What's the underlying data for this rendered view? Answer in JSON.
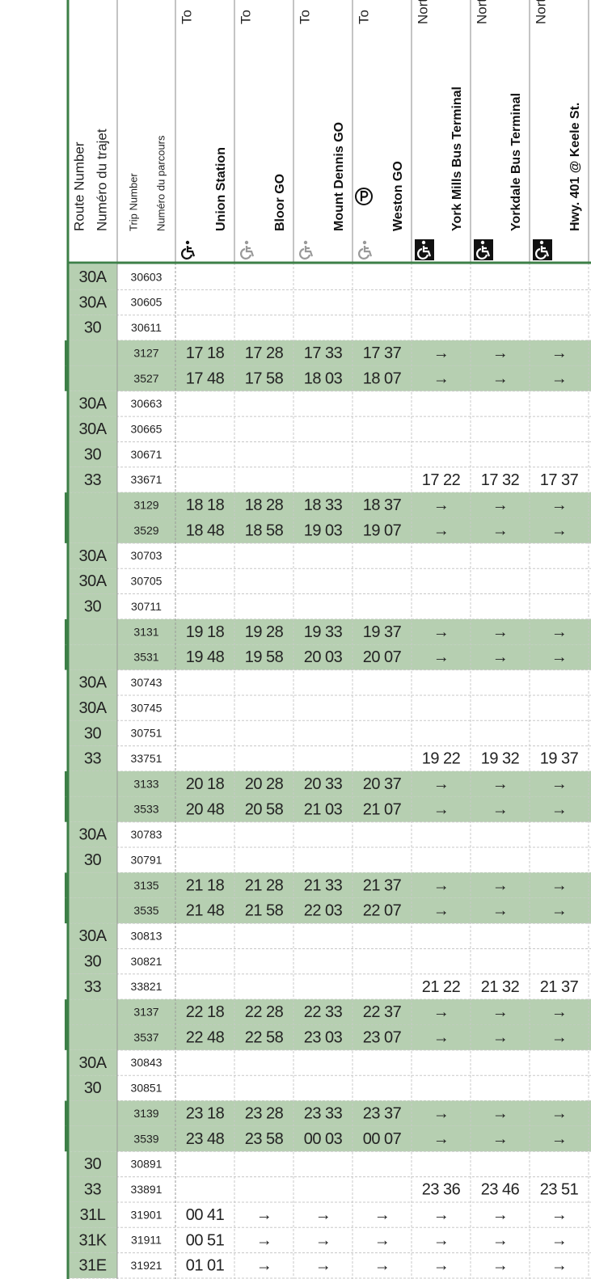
{
  "header": {
    "route_label": [
      "Route Number",
      "Numéro du trajet"
    ],
    "trip_label": [
      "Trip Number",
      "Numéro du parcours"
    ],
    "stops": [
      {
        "direction": "To",
        "name": "Union Station"
      },
      {
        "direction": "To",
        "name": "Bloor GO"
      },
      {
        "direction": "To",
        "name": "Mount Dennis GO"
      },
      {
        "direction": "To",
        "name": "Weston GO"
      },
      {
        "direction": "North",
        "name": "York Mills Bus Terminal"
      },
      {
        "direction": "North",
        "name": "Yorkdale Bus Terminal"
      },
      {
        "direction": "North",
        "name": "Hwy. 401 @ Keele St."
      }
    ]
  },
  "table": {
    "rows": [
      {
        "route": "30A",
        "trip": "30603",
        "shaded": false,
        "times": [
          null,
          null,
          null,
          null,
          null,
          null,
          null
        ]
      },
      {
        "route": "30A",
        "trip": "30605",
        "shaded": false,
        "times": [
          null,
          null,
          null,
          null,
          null,
          null,
          null
        ]
      },
      {
        "route": "30",
        "trip": "30611",
        "shaded": false,
        "times": [
          null,
          null,
          null,
          null,
          null,
          null,
          null
        ]
      },
      {
        "route": null,
        "trip": "3127",
        "shaded": true,
        "times": [
          "17 18",
          "17 28",
          "17 33",
          "17 37",
          "→",
          "→",
          "→"
        ]
      },
      {
        "route": null,
        "trip": "3527",
        "shaded": true,
        "times": [
          "17 48",
          "17 58",
          "18 03",
          "18 07",
          "→",
          "→",
          "→"
        ]
      },
      {
        "route": "30A",
        "trip": "30663",
        "shaded": false,
        "times": [
          null,
          null,
          null,
          null,
          null,
          null,
          null
        ]
      },
      {
        "route": "30A",
        "trip": "30665",
        "shaded": false,
        "times": [
          null,
          null,
          null,
          null,
          null,
          null,
          null
        ]
      },
      {
        "route": "30",
        "trip": "30671",
        "shaded": false,
        "times": [
          null,
          null,
          null,
          null,
          null,
          null,
          null
        ]
      },
      {
        "route": "33",
        "trip": "33671",
        "shaded": false,
        "times": [
          null,
          null,
          null,
          null,
          "17 22",
          "17 32",
          "17 37"
        ]
      },
      {
        "route": null,
        "trip": "3129",
        "shaded": true,
        "times": [
          "18 18",
          "18 28",
          "18 33",
          "18 37",
          "→",
          "→",
          "→"
        ]
      },
      {
        "route": null,
        "trip": "3529",
        "shaded": true,
        "times": [
          "18 48",
          "18 58",
          "19 03",
          "19 07",
          "→",
          "→",
          "→"
        ]
      },
      {
        "route": "30A",
        "trip": "30703",
        "shaded": false,
        "times": [
          null,
          null,
          null,
          null,
          null,
          null,
          null
        ]
      },
      {
        "route": "30A",
        "trip": "30705",
        "shaded": false,
        "times": [
          null,
          null,
          null,
          null,
          null,
          null,
          null
        ]
      },
      {
        "route": "30",
        "trip": "30711",
        "shaded": false,
        "times": [
          null,
          null,
          null,
          null,
          null,
          null,
          null
        ]
      },
      {
        "route": null,
        "trip": "3131",
        "shaded": true,
        "times": [
          "19 18",
          "19 28",
          "19 33",
          "19 37",
          "→",
          "→",
          "→"
        ]
      },
      {
        "route": null,
        "trip": "3531",
        "shaded": true,
        "times": [
          "19 48",
          "19 58",
          "20 03",
          "20 07",
          "→",
          "→",
          "→"
        ]
      },
      {
        "route": "30A",
        "trip": "30743",
        "shaded": false,
        "times": [
          null,
          null,
          null,
          null,
          null,
          null,
          null
        ]
      },
      {
        "route": "30A",
        "trip": "30745",
        "shaded": false,
        "times": [
          null,
          null,
          null,
          null,
          null,
          null,
          null
        ]
      },
      {
        "route": "30",
        "trip": "30751",
        "shaded": false,
        "times": [
          null,
          null,
          null,
          null,
          null,
          null,
          null
        ]
      },
      {
        "route": "33",
        "trip": "33751",
        "shaded": false,
        "times": [
          null,
          null,
          null,
          null,
          "19 22",
          "19 32",
          "19 37"
        ]
      },
      {
        "route": null,
        "trip": "3133",
        "shaded": true,
        "times": [
          "20 18",
          "20 28",
          "20 33",
          "20 37",
          "→",
          "→",
          "→"
        ]
      },
      {
        "route": null,
        "trip": "3533",
        "shaded": true,
        "times": [
          "20 48",
          "20 58",
          "21 03",
          "21 07",
          "→",
          "→",
          "→"
        ]
      },
      {
        "route": "30A",
        "trip": "30783",
        "shaded": false,
        "times": [
          null,
          null,
          null,
          null,
          null,
          null,
          null
        ]
      },
      {
        "route": "30",
        "trip": "30791",
        "shaded": false,
        "times": [
          null,
          null,
          null,
          null,
          null,
          null,
          null
        ]
      },
      {
        "route": null,
        "trip": "3135",
        "shaded": true,
        "times": [
          "21 18",
          "21 28",
          "21 33",
          "21 37",
          "→",
          "→",
          "→"
        ]
      },
      {
        "route": null,
        "trip": "3535",
        "shaded": true,
        "times": [
          "21 48",
          "21 58",
          "22 03",
          "22 07",
          "→",
          "→",
          "→"
        ]
      },
      {
        "route": "30A",
        "trip": "30813",
        "shaded": false,
        "times": [
          null,
          null,
          null,
          null,
          null,
          null,
          null
        ]
      },
      {
        "route": "30",
        "trip": "30821",
        "shaded": false,
        "times": [
          null,
          null,
          null,
          null,
          null,
          null,
          null
        ]
      },
      {
        "route": "33",
        "trip": "33821",
        "shaded": false,
        "times": [
          null,
          null,
          null,
          null,
          "21 22",
          "21 32",
          "21 37"
        ]
      },
      {
        "route": null,
        "trip": "3137",
        "shaded": true,
        "times": [
          "22 18",
          "22 28",
          "22 33",
          "22 37",
          "→",
          "→",
          "→"
        ]
      },
      {
        "route": null,
        "trip": "3537",
        "shaded": true,
        "times": [
          "22 48",
          "22 58",
          "23 03",
          "23 07",
          "→",
          "→",
          "→"
        ]
      },
      {
        "route": "30A",
        "trip": "30843",
        "shaded": false,
        "times": [
          null,
          null,
          null,
          null,
          null,
          null,
          null
        ]
      },
      {
        "route": "30",
        "trip": "30851",
        "shaded": false,
        "times": [
          null,
          null,
          null,
          null,
          null,
          null,
          null
        ]
      },
      {
        "route": null,
        "trip": "3139",
        "shaded": true,
        "times": [
          "23 18",
          "23 28",
          "23 33",
          "23 37",
          "→",
          "→",
          "→"
        ]
      },
      {
        "route": null,
        "trip": "3539",
        "shaded": true,
        "times": [
          "23 48",
          "23 58",
          "00 03",
          "00 07",
          "→",
          "→",
          "→"
        ]
      },
      {
        "route": "30",
        "trip": "30891",
        "shaded": false,
        "times": [
          null,
          null,
          null,
          null,
          null,
          null,
          null
        ]
      },
      {
        "route": "33",
        "trip": "33891",
        "shaded": false,
        "times": [
          null,
          null,
          null,
          null,
          "23 36",
          "23 46",
          "23 51"
        ]
      },
      {
        "route": "31L",
        "trip": "31901",
        "shaded": false,
        "times": [
          "00 41",
          "→",
          "→",
          "→",
          "→",
          "→",
          "→"
        ]
      },
      {
        "route": "31K",
        "trip": "31911",
        "shaded": false,
        "times": [
          "00 51",
          "→",
          "→",
          "→",
          "→",
          "→",
          "→"
        ]
      },
      {
        "route": "31E",
        "trip": "31921",
        "shaded": false,
        "times": [
          "01 01",
          "→",
          "→",
          "→",
          "→",
          "→",
          "→"
        ]
      }
    ]
  }
}
